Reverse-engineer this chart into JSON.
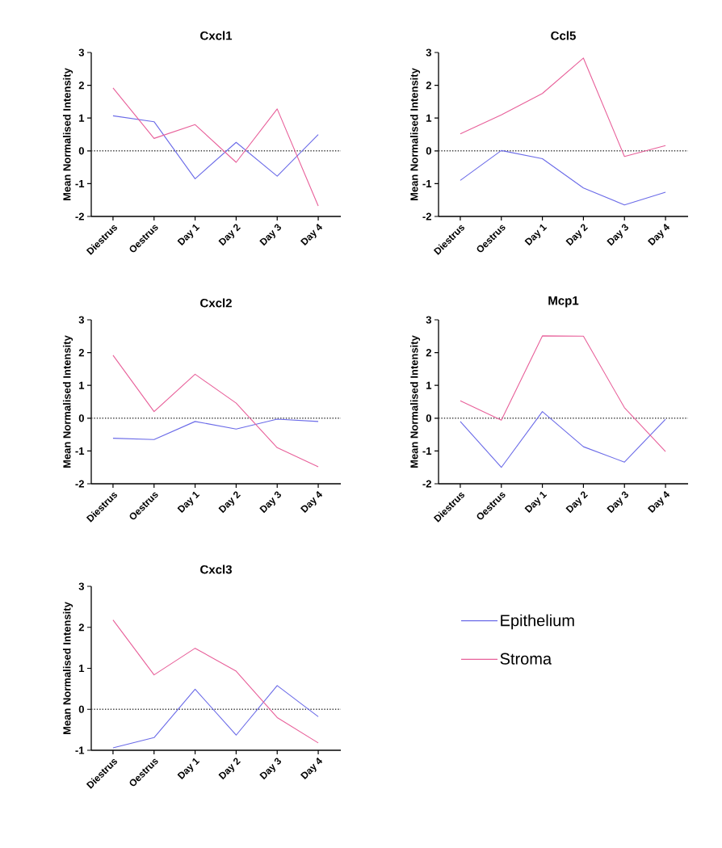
{
  "chart_data": [
    {
      "type": "line",
      "title": "Cxcl1",
      "ylabel": "Mean Normalised Intensity",
      "categories": [
        "Diestrus",
        "Oestrus",
        "Day 1",
        "Day 2",
        "Day 3",
        "Day 4"
      ],
      "ylim": [
        -2,
        3
      ],
      "yticks": [
        -2,
        -1,
        0,
        1,
        2,
        3
      ],
      "ref_lines": [
        {
          "axis": "y",
          "value": 0,
          "color": "#404040",
          "line_style": "dotted"
        }
      ],
      "series": [
        {
          "color": "#6b6be8",
          "values": [
            1.07,
            0.89,
            -0.85,
            0.26,
            -0.77,
            0.5
          ]
        },
        {
          "color": "#e8609a",
          "values": [
            1.92,
            0.38,
            0.8,
            -0.35,
            1.28,
            -1.68
          ]
        }
      ]
    },
    {
      "type": "line",
      "title": "Ccl5",
      "ylabel": "Mean Normalised Intensity",
      "categories": [
        "Diestrus",
        "Oestrus",
        "Day 1",
        "Day 2",
        "Day 3",
        "Day 4"
      ],
      "ylim": [
        -2,
        3
      ],
      "yticks": [
        -2,
        -1,
        0,
        1,
        2,
        3
      ],
      "ref_lines": [
        {
          "axis": "y",
          "value": 0,
          "color": "#404040",
          "line_style": "dotted"
        }
      ],
      "series": [
        {
          "color": "#6b6be8",
          "values": [
            -0.9,
            0.01,
            -0.24,
            -1.13,
            -1.65,
            -1.26
          ]
        },
        {
          "color": "#e8609a",
          "values": [
            0.52,
            1.1,
            1.75,
            2.83,
            -0.17,
            0.16
          ]
        }
      ]
    },
    {
      "type": "line",
      "title": "Cxcl2",
      "ylabel": "Mean Normalised Intensity",
      "categories": [
        "Diestrus",
        "Oestrus",
        "Day 1",
        "Day 2",
        "Day 3",
        "Day 4"
      ],
      "ylim": [
        -2,
        3
      ],
      "yticks": [
        -2,
        -1,
        0,
        1,
        2,
        3
      ],
      "ref_lines": [
        {
          "axis": "y",
          "value": 0,
          "color": "#404040",
          "line_style": "dotted"
        }
      ],
      "series": [
        {
          "color": "#6b6be8",
          "values": [
            -0.61,
            -0.65,
            -0.1,
            -0.33,
            -0.03,
            -0.1
          ]
        },
        {
          "color": "#e8609a",
          "values": [
            1.92,
            0.2,
            1.34,
            0.46,
            -0.9,
            -1.48
          ]
        }
      ]
    },
    {
      "type": "line",
      "title": "Mcp1",
      "ylabel": "Mean Normalised Intensity",
      "categories": [
        "Diestrus",
        "Oestrus",
        "Day 1",
        "Day 2",
        "Day 3",
        "Day 4"
      ],
      "ylim": [
        -2,
        3
      ],
      "yticks": [
        -2,
        -1,
        0,
        1,
        2,
        3
      ],
      "ref_lines": [
        {
          "axis": "y",
          "value": 0,
          "color": "#404040",
          "line_style": "dotted"
        }
      ],
      "series": [
        {
          "color": "#6b6be8",
          "values": [
            -0.1,
            -1.5,
            0.2,
            -0.87,
            -1.34,
            -0.03
          ]
        },
        {
          "color": "#e8609a",
          "values": [
            0.53,
            -0.06,
            2.51,
            2.5,
            0.32,
            -1.02
          ]
        }
      ]
    },
    {
      "type": "line",
      "title": "Cxcl3",
      "ylabel": "Mean Normalised Intensity",
      "categories": [
        "Diestrus",
        "Oestrus",
        "Day 1",
        "Day 2",
        "Day 3",
        "Day 4"
      ],
      "ylim": [
        -1,
        3
      ],
      "yticks": [
        -1,
        0,
        1,
        2,
        3
      ],
      "ref_lines": [
        {
          "axis": "y",
          "value": 0,
          "color": "#404040",
          "line_style": "dotted"
        }
      ],
      "legend": "right",
      "series": [
        {
          "name": "Epithelium",
          "color": "#6b6be8",
          "values": [
            -0.94,
            -0.69,
            0.49,
            -0.63,
            0.58,
            -0.18
          ]
        },
        {
          "name": "Stroma",
          "color": "#e8609a",
          "values": [
            2.18,
            0.84,
            1.49,
            0.93,
            -0.2,
            -0.82
          ]
        }
      ]
    }
  ]
}
